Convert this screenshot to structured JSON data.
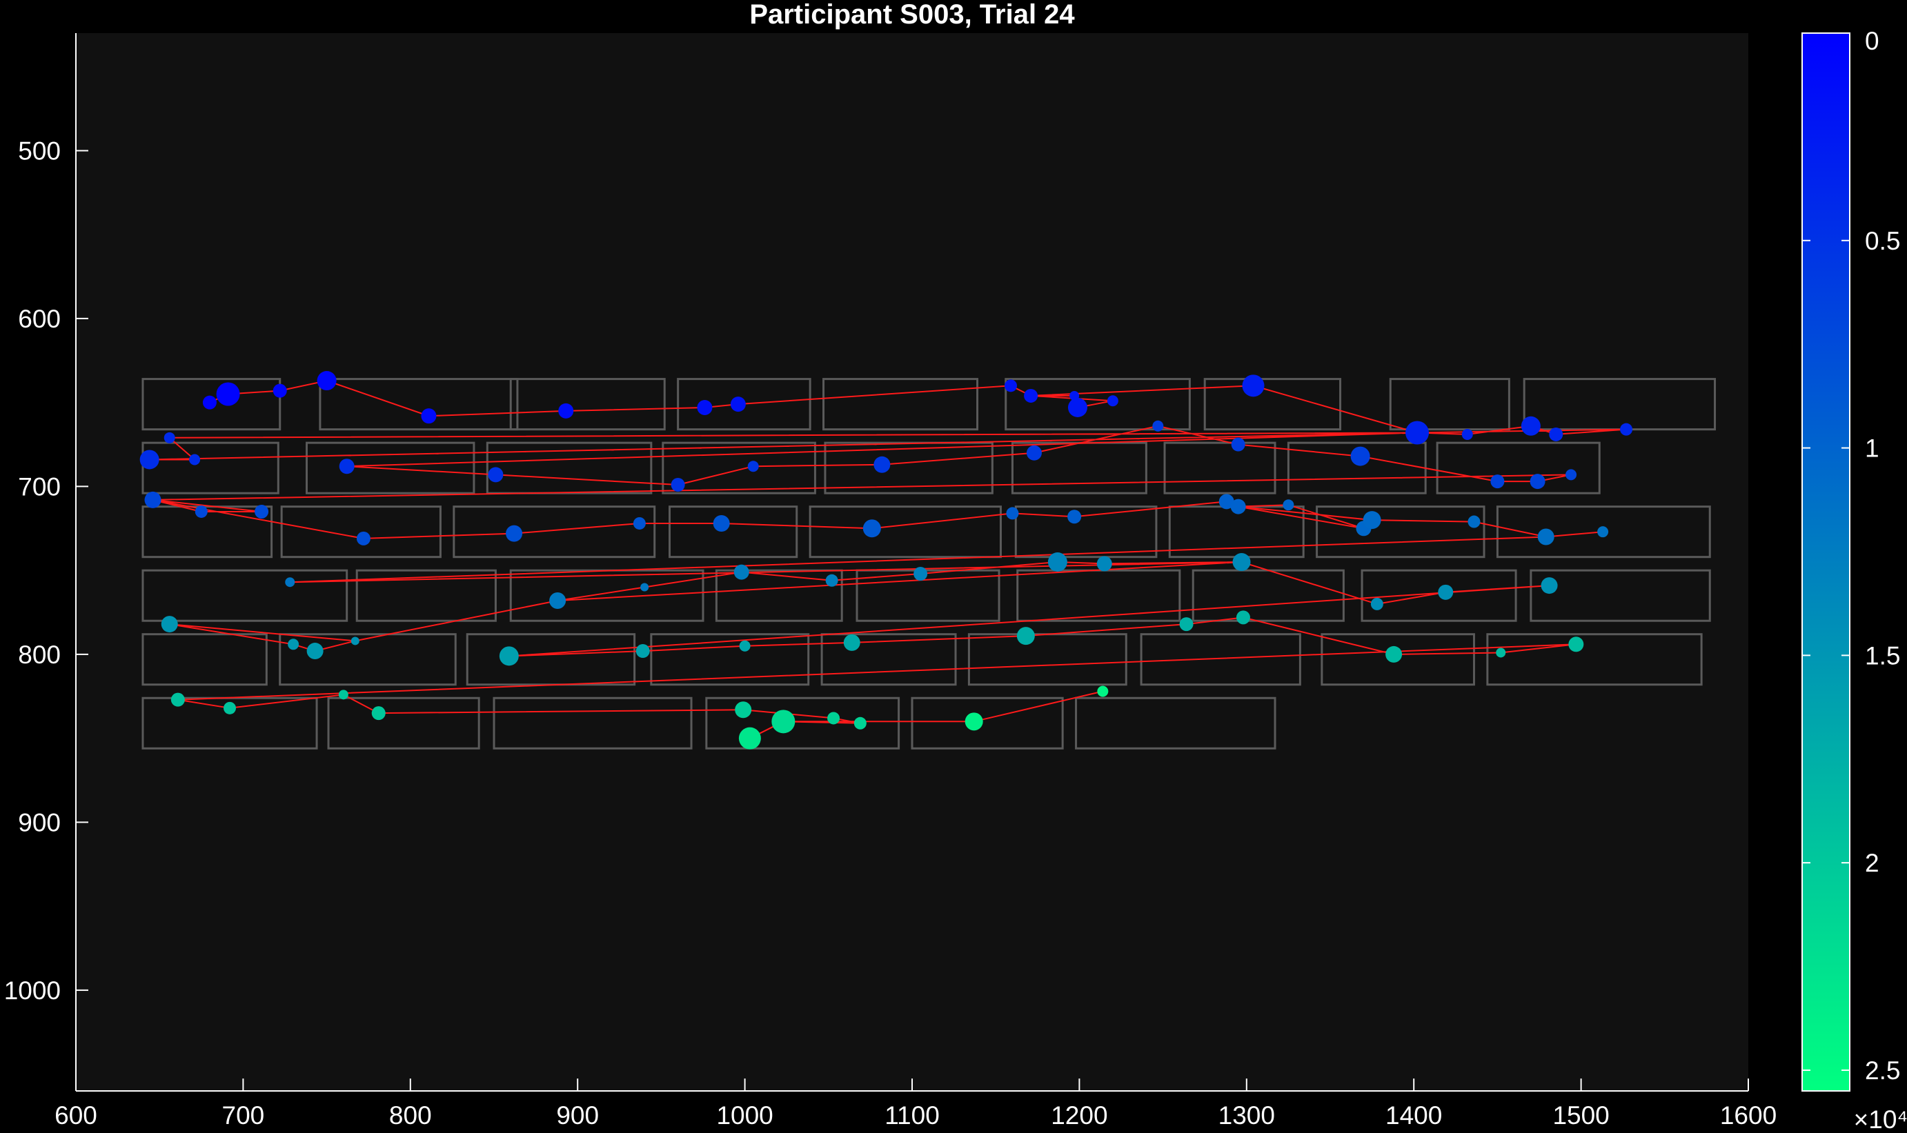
{
  "chart_data": {
    "type": "scatter",
    "title": "Participant S003, Trial 24",
    "xlabel": "",
    "ylabel": "",
    "xlim": [
      600,
      1600
    ],
    "ylim": [
      1060,
      430
    ],
    "y_reversed": true,
    "xticks": [
      600,
      700,
      800,
      900,
      1000,
      1100,
      1200,
      1300,
      1400,
      1500,
      1600
    ],
    "yticks": [
      500,
      600,
      700,
      800,
      900,
      1000
    ],
    "grid": false,
    "background": "#111111",
    "figure_background": "#000000",
    "box_color": "#5a5a5a",
    "scanpath_color": "#ff1a1a",
    "colorbar": {
      "position": "right",
      "min": 0,
      "max": 2.55,
      "reversed": true,
      "ticks": [
        0,
        0.5,
        1,
        1.5,
        2,
        2.5
      ],
      "tick_labels": [
        "0",
        "0.5",
        "1",
        "1.5",
        "2",
        "2.5"
      ],
      "exponent_label": "×10⁴",
      "color_top": "#0000ff",
      "color_bottom": "#00ff80"
    },
    "word_boxes": [
      [
        640,
        636,
        722,
        666
      ],
      [
        746,
        636,
        864,
        666
      ],
      [
        860,
        636,
        952,
        666
      ],
      [
        960,
        636,
        1039,
        666
      ],
      [
        1047,
        636,
        1139,
        666
      ],
      [
        1156,
        636,
        1266,
        666
      ],
      [
        1275,
        636,
        1356,
        666
      ],
      [
        1386,
        636,
        1457,
        666
      ],
      [
        1466,
        636,
        1580,
        666
      ],
      [
        640,
        674,
        721,
        704
      ],
      [
        738,
        674,
        838,
        704
      ],
      [
        846,
        674,
        944,
        704
      ],
      [
        951,
        674,
        1042,
        704
      ],
      [
        1048,
        674,
        1148,
        704
      ],
      [
        1160,
        674,
        1240,
        704
      ],
      [
        1251,
        674,
        1317,
        704
      ],
      [
        1325,
        674,
        1407,
        704
      ],
      [
        1414,
        674,
        1511,
        704
      ],
      [
        640,
        712,
        717,
        742
      ],
      [
        723,
        712,
        818,
        742
      ],
      [
        826,
        712,
        946,
        742
      ],
      [
        955,
        712,
        1031,
        742
      ],
      [
        1039,
        712,
        1153,
        742
      ],
      [
        1162,
        712,
        1246,
        742
      ],
      [
        1254,
        712,
        1334,
        742
      ],
      [
        1342,
        712,
        1442,
        742
      ],
      [
        1450,
        712,
        1577,
        742
      ],
      [
        640,
        750,
        762,
        780
      ],
      [
        768,
        750,
        851,
        780
      ],
      [
        860,
        750,
        975,
        780
      ],
      [
        983,
        750,
        1058,
        780
      ],
      [
        1067,
        750,
        1152,
        780
      ],
      [
        1163,
        750,
        1260,
        780
      ],
      [
        1268,
        750,
        1358,
        780
      ],
      [
        1369,
        750,
        1461,
        780
      ],
      [
        1470,
        750,
        1577,
        780
      ],
      [
        640,
        788,
        714,
        818
      ],
      [
        722,
        788,
        827,
        818
      ],
      [
        834,
        788,
        934,
        818
      ],
      [
        944,
        788,
        1038,
        818
      ],
      [
        1046,
        788,
        1126,
        818
      ],
      [
        1134,
        788,
        1228,
        818
      ],
      [
        1237,
        788,
        1332,
        818
      ],
      [
        1345,
        788,
        1436,
        818
      ],
      [
        1444,
        788,
        1572,
        818
      ],
      [
        640,
        826,
        744,
        856
      ],
      [
        751,
        826,
        841,
        856
      ],
      [
        850,
        826,
        968,
        856
      ],
      [
        977,
        826,
        1092,
        856
      ],
      [
        1100,
        826,
        1190,
        856
      ],
      [
        1198,
        826,
        1317,
        856
      ]
    ],
    "fixations": [
      [
        680,
        650,
        10,
        0.02
      ],
      [
        691,
        645,
        17,
        0.03
      ],
      [
        722,
        643,
        10,
        0.05
      ],
      [
        750,
        637,
        14,
        0.07
      ],
      [
        811,
        658,
        11,
        0.1
      ],
      [
        893,
        655,
        11,
        0.13
      ],
      [
        976,
        653,
        11,
        0.16
      ],
      [
        996,
        651,
        11,
        0.18
      ],
      [
        1159,
        640,
        9,
        0.2
      ],
      [
        1171,
        646,
        10,
        0.22
      ],
      [
        1197,
        646,
        7,
        0.24
      ],
      [
        1199,
        653,
        14,
        0.25
      ],
      [
        1220,
        649,
        8,
        0.27
      ],
      [
        1304,
        640,
        16,
        0.3
      ],
      [
        1402,
        668,
        17,
        0.34
      ],
      [
        1432,
        669,
        8,
        0.35
      ],
      [
        1470,
        664,
        14,
        0.37
      ],
      [
        1485,
        669,
        10,
        0.38
      ],
      [
        1527,
        666,
        9,
        0.39
      ],
      [
        656,
        671,
        8,
        0.42
      ],
      [
        671,
        684,
        8,
        0.44
      ],
      [
        644,
        684,
        14,
        0.45
      ],
      [
        762,
        688,
        11,
        0.48
      ],
      [
        851,
        693,
        11,
        0.5
      ],
      [
        960,
        699,
        10,
        0.52
      ],
      [
        1005,
        688,
        8,
        0.54
      ],
      [
        1082,
        687,
        12,
        0.56
      ],
      [
        1173,
        680,
        11,
        0.58
      ],
      [
        1247,
        664,
        8,
        0.6
      ],
      [
        1295,
        675,
        10,
        0.62
      ],
      [
        1368,
        682,
        14,
        0.64
      ],
      [
        1450,
        697,
        10,
        0.66
      ],
      [
        1474,
        697,
        11,
        0.67
      ],
      [
        1494,
        693,
        8,
        0.68
      ],
      [
        646,
        708,
        12,
        0.71
      ],
      [
        675,
        715,
        9,
        0.73
      ],
      [
        711,
        715,
        10,
        0.75
      ],
      [
        772,
        731,
        10,
        0.78
      ],
      [
        862,
        728,
        12,
        0.81
      ],
      [
        937,
        722,
        9,
        0.84
      ],
      [
        986,
        722,
        12,
        0.86
      ],
      [
        1076,
        725,
        13,
        0.89
      ],
      [
        1160,
        716,
        9,
        0.92
      ],
      [
        1197,
        718,
        10,
        0.94
      ],
      [
        1288,
        709,
        11,
        0.97
      ],
      [
        1295,
        712,
        11,
        0.98
      ],
      [
        1325,
        711,
        8,
        1.0
      ],
      [
        1370,
        725,
        11,
        1.04
      ],
      [
        1375,
        720,
        13,
        1.06
      ],
      [
        1436,
        721,
        9,
        1.09
      ],
      [
        1479,
        730,
        12,
        1.12
      ],
      [
        1513,
        727,
        8,
        1.14
      ],
      [
        728,
        757,
        7,
        1.17
      ],
      [
        940,
        760,
        6,
        1.2
      ],
      [
        888,
        768,
        12,
        1.22
      ],
      [
        998,
        751,
        11,
        1.25
      ],
      [
        1052,
        756,
        9,
        1.27
      ],
      [
        1105,
        752,
        10,
        1.3
      ],
      [
        1187,
        745,
        14,
        1.33
      ],
      [
        1215,
        746,
        11,
        1.35
      ],
      [
        1297,
        745,
        13,
        1.38
      ],
      [
        1378,
        770,
        9,
        1.41
      ],
      [
        1419,
        763,
        11,
        1.44
      ],
      [
        1481,
        759,
        12,
        1.46
      ],
      [
        767,
        792,
        6,
        1.48
      ],
      [
        656,
        782,
        12,
        1.5
      ],
      [
        730,
        794,
        8,
        1.53
      ],
      [
        743,
        798,
        12,
        1.55
      ],
      [
        859,
        801,
        14,
        1.6
      ],
      [
        939,
        798,
        10,
        1.63
      ],
      [
        1000,
        795,
        8,
        1.66
      ],
      [
        1064,
        793,
        12,
        1.7
      ],
      [
        1168,
        789,
        13,
        1.74
      ],
      [
        1264,
        782,
        10,
        1.78
      ],
      [
        1298,
        778,
        10,
        1.82
      ],
      [
        1388,
        800,
        12,
        1.86
      ],
      [
        1452,
        799,
        7,
        1.88
      ],
      [
        1497,
        794,
        11,
        1.9
      ],
      [
        661,
        827,
        10,
        1.93
      ],
      [
        692,
        832,
        9,
        1.96
      ],
      [
        760,
        824,
        7,
        1.98
      ],
      [
        781,
        835,
        10,
        2.0
      ],
      [
        999,
        833,
        12,
        2.05
      ],
      [
        1053,
        838,
        9,
        2.1
      ],
      [
        1069,
        841,
        9,
        2.12
      ],
      [
        1023,
        840,
        17,
        2.2
      ],
      [
        1003,
        850,
        16,
        2.3
      ],
      [
        1137,
        840,
        13,
        2.4
      ],
      [
        1214,
        822,
        8,
        2.45
      ]
    ],
    "scanpath": [
      [
        680,
        650
      ],
      [
        691,
        645
      ],
      [
        722,
        643
      ],
      [
        750,
        637
      ],
      [
        811,
        658
      ],
      [
        893,
        655
      ],
      [
        976,
        653
      ],
      [
        996,
        651
      ],
      [
        1159,
        640
      ],
      [
        1171,
        646
      ],
      [
        1197,
        646
      ],
      [
        1199,
        653
      ],
      [
        1220,
        649
      ],
      [
        1171,
        646
      ],
      [
        1304,
        640
      ],
      [
        1402,
        668
      ],
      [
        1432,
        669
      ],
      [
        1470,
        664
      ],
      [
        1485,
        669
      ],
      [
        1527,
        666
      ],
      [
        1402,
        668
      ],
      [
        656,
        671
      ],
      [
        671,
        684
      ],
      [
        644,
        684
      ],
      [
        1402,
        668
      ],
      [
        762,
        688
      ],
      [
        851,
        693
      ],
      [
        960,
        699
      ],
      [
        1005,
        688
      ],
      [
        1082,
        687
      ],
      [
        1173,
        680
      ],
      [
        1247,
        664
      ],
      [
        1295,
        675
      ],
      [
        1368,
        682
      ],
      [
        1450,
        697
      ],
      [
        1474,
        697
      ],
      [
        1494,
        693
      ],
      [
        646,
        708
      ],
      [
        675,
        715
      ],
      [
        711,
        715
      ],
      [
        646,
        708
      ],
      [
        772,
        731
      ],
      [
        862,
        728
      ],
      [
        937,
        722
      ],
      [
        986,
        722
      ],
      [
        1076,
        725
      ],
      [
        1160,
        716
      ],
      [
        1197,
        718
      ],
      [
        1288,
        709
      ],
      [
        1295,
        712
      ],
      [
        1325,
        711
      ],
      [
        1370,
        725
      ],
      [
        1295,
        712
      ],
      [
        1375,
        720
      ],
      [
        1436,
        721
      ],
      [
        1479,
        730
      ],
      [
        1513,
        727
      ],
      [
        1479,
        730
      ],
      [
        728,
        757
      ],
      [
        1297,
        745
      ],
      [
        1215,
        746
      ],
      [
        1187,
        745
      ],
      [
        1105,
        752
      ],
      [
        1052,
        756
      ],
      [
        998,
        751
      ],
      [
        940,
        760
      ],
      [
        888,
        768
      ],
      [
        767,
        792
      ],
      [
        656,
        782
      ],
      [
        730,
        794
      ],
      [
        743,
        798
      ],
      [
        767,
        792
      ],
      [
        888,
        768
      ],
      [
        1297,
        745
      ],
      [
        1378,
        770
      ],
      [
        1419,
        763
      ],
      [
        1481,
        759
      ],
      [
        859,
        801
      ],
      [
        939,
        798
      ],
      [
        1000,
        795
      ],
      [
        1064,
        793
      ],
      [
        1168,
        789
      ],
      [
        1264,
        782
      ],
      [
        1298,
        778
      ],
      [
        1388,
        800
      ],
      [
        1452,
        799
      ],
      [
        1497,
        794
      ],
      [
        661,
        827
      ],
      [
        692,
        832
      ],
      [
        760,
        824
      ],
      [
        781,
        835
      ],
      [
        999,
        833
      ],
      [
        1053,
        838
      ],
      [
        1069,
        841
      ],
      [
        1023,
        840
      ],
      [
        1003,
        850
      ],
      [
        1023,
        840
      ],
      [
        1137,
        840
      ],
      [
        1214,
        822
      ]
    ]
  }
}
